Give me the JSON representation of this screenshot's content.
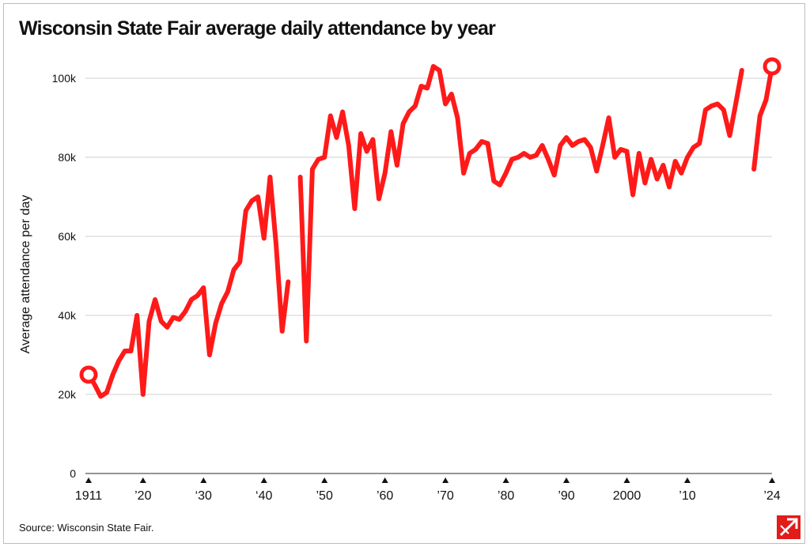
{
  "chart_data": {
    "type": "line",
    "title": "Wisconsin State Fair average daily attendance by year",
    "source": "Source: Wisconsin State Fair.",
    "ylabel": "Average attendance per day",
    "xlabel": "",
    "ylim": [
      0,
      103000
    ],
    "xlim": [
      1911,
      2024
    ],
    "grid": true,
    "y_ticks": [
      {
        "value": 0,
        "label": "0"
      },
      {
        "value": 20000,
        "label": "20k"
      },
      {
        "value": 40000,
        "label": "40k"
      },
      {
        "value": 60000,
        "label": "60k"
      },
      {
        "value": 80000,
        "label": "80k"
      },
      {
        "value": 100000,
        "label": "100k"
      }
    ],
    "x_ticks": [
      {
        "value": 1911,
        "label": "1911"
      },
      {
        "value": 1920,
        "label": "’20"
      },
      {
        "value": 1930,
        "label": "‘30"
      },
      {
        "value": 1940,
        "label": "‘40"
      },
      {
        "value": 1950,
        "label": "’50"
      },
      {
        "value": 1960,
        "label": "’60"
      },
      {
        "value": 1970,
        "label": "’70"
      },
      {
        "value": 1980,
        "label": "’80"
      },
      {
        "value": 1990,
        "label": "’90"
      },
      {
        "value": 2000,
        "label": "2000"
      },
      {
        "value": 2010,
        "label": "’10"
      },
      {
        "value": 2024,
        "label": "’24"
      }
    ],
    "line_color": "#ff1a1a",
    "highlight_points": [
      1911,
      2024
    ],
    "series": [
      {
        "segments": [
          [
            [
              1911,
              25000
            ],
            [
              1912,
              22500
            ],
            [
              1913,
              19500
            ],
            [
              1914,
              20500
            ],
            [
              1915,
              25000
            ],
            [
              1916,
              28500
            ],
            [
              1917,
              31000
            ],
            [
              1918,
              31000
            ],
            [
              1919,
              40000
            ],
            [
              1920,
              20000
            ],
            [
              1921,
              38500
            ],
            [
              1922,
              44000
            ],
            [
              1923,
              38500
            ],
            [
              1924,
              37000
            ],
            [
              1925,
              39500
            ],
            [
              1926,
              39000
            ],
            [
              1927,
              41000
            ],
            [
              1928,
              44000
            ],
            [
              1929,
              45000
            ],
            [
              1930,
              47000
            ],
            [
              1931,
              30000
            ],
            [
              1932,
              38000
            ],
            [
              1933,
              43000
            ],
            [
              1934,
              46000
            ],
            [
              1935,
              51500
            ],
            [
              1936,
              53500
            ],
            [
              1937,
              66500
            ],
            [
              1938,
              69000
            ],
            [
              1939,
              70000
            ],
            [
              1940,
              59500
            ],
            [
              1941,
              75000
            ],
            [
              1942,
              58000
            ],
            [
              1943,
              36000
            ],
            [
              1944,
              48500
            ]
          ],
          [
            [
              1946,
              75000
            ],
            [
              1947,
              33500
            ],
            [
              1948,
              77000
            ],
            [
              1949,
              79500
            ],
            [
              1950,
              80000
            ],
            [
              1951,
              90500
            ],
            [
              1952,
              85000
            ],
            [
              1953,
              91500
            ],
            [
              1954,
              83000
            ],
            [
              1955,
              67000
            ],
            [
              1956,
              86000
            ],
            [
              1957,
              81500
            ],
            [
              1958,
              84500
            ],
            [
              1959,
              69500
            ],
            [
              1960,
              76000
            ],
            [
              1961,
              86500
            ],
            [
              1962,
              78000
            ],
            [
              1963,
              88500
            ],
            [
              1964,
              91500
            ],
            [
              1965,
              93000
            ],
            [
              1966,
              98000
            ],
            [
              1967,
              97500
            ],
            [
              1968,
              103000
            ],
            [
              1969,
              102000
            ],
            [
              1970,
              93500
            ],
            [
              1971,
              96000
            ],
            [
              1972,
              90000
            ],
            [
              1973,
              76000
            ],
            [
              1974,
              81000
            ],
            [
              1975,
              82000
            ],
            [
              1976,
              84000
            ],
            [
              1977,
              83500
            ],
            [
              1978,
              74000
            ],
            [
              1979,
              73000
            ],
            [
              1980,
              76000
            ],
            [
              1981,
              79500
            ],
            [
              1982,
              80000
            ],
            [
              1983,
              81000
            ],
            [
              1984,
              80000
            ],
            [
              1985,
              80500
            ],
            [
              1986,
              83000
            ],
            [
              1987,
              79500
            ],
            [
              1988,
              75500
            ],
            [
              1989,
              83000
            ],
            [
              1990,
              85000
            ],
            [
              1991,
              83000
            ],
            [
              1992,
              84000
            ],
            [
              1993,
              84500
            ],
            [
              1994,
              82500
            ],
            [
              1995,
              76500
            ],
            [
              1996,
              83000
            ],
            [
              1997,
              90000
            ],
            [
              1998,
              80000
            ],
            [
              1999,
              82000
            ],
            [
              2000,
              81500
            ],
            [
              2001,
              70500
            ],
            [
              2002,
              81000
            ],
            [
              2003,
              73500
            ],
            [
              2004,
              79500
            ],
            [
              2005,
              74500
            ],
            [
              2006,
              78000
            ],
            [
              2007,
              72500
            ],
            [
              2008,
              79000
            ],
            [
              2009,
              76000
            ],
            [
              2010,
              80000
            ],
            [
              2011,
              82500
            ],
            [
              2012,
              83500
            ],
            [
              2013,
              92000
            ],
            [
              2014,
              93000
            ],
            [
              2015,
              93500
            ],
            [
              2016,
              92000
            ],
            [
              2017,
              85500
            ],
            [
              2018,
              93500
            ],
            [
              2019,
              102000
            ]
          ],
          [
            [
              2021,
              77000
            ],
            [
              2022,
              90500
            ],
            [
              2023,
              94500
            ],
            [
              2024,
              103000
            ]
          ]
        ]
      }
    ]
  }
}
